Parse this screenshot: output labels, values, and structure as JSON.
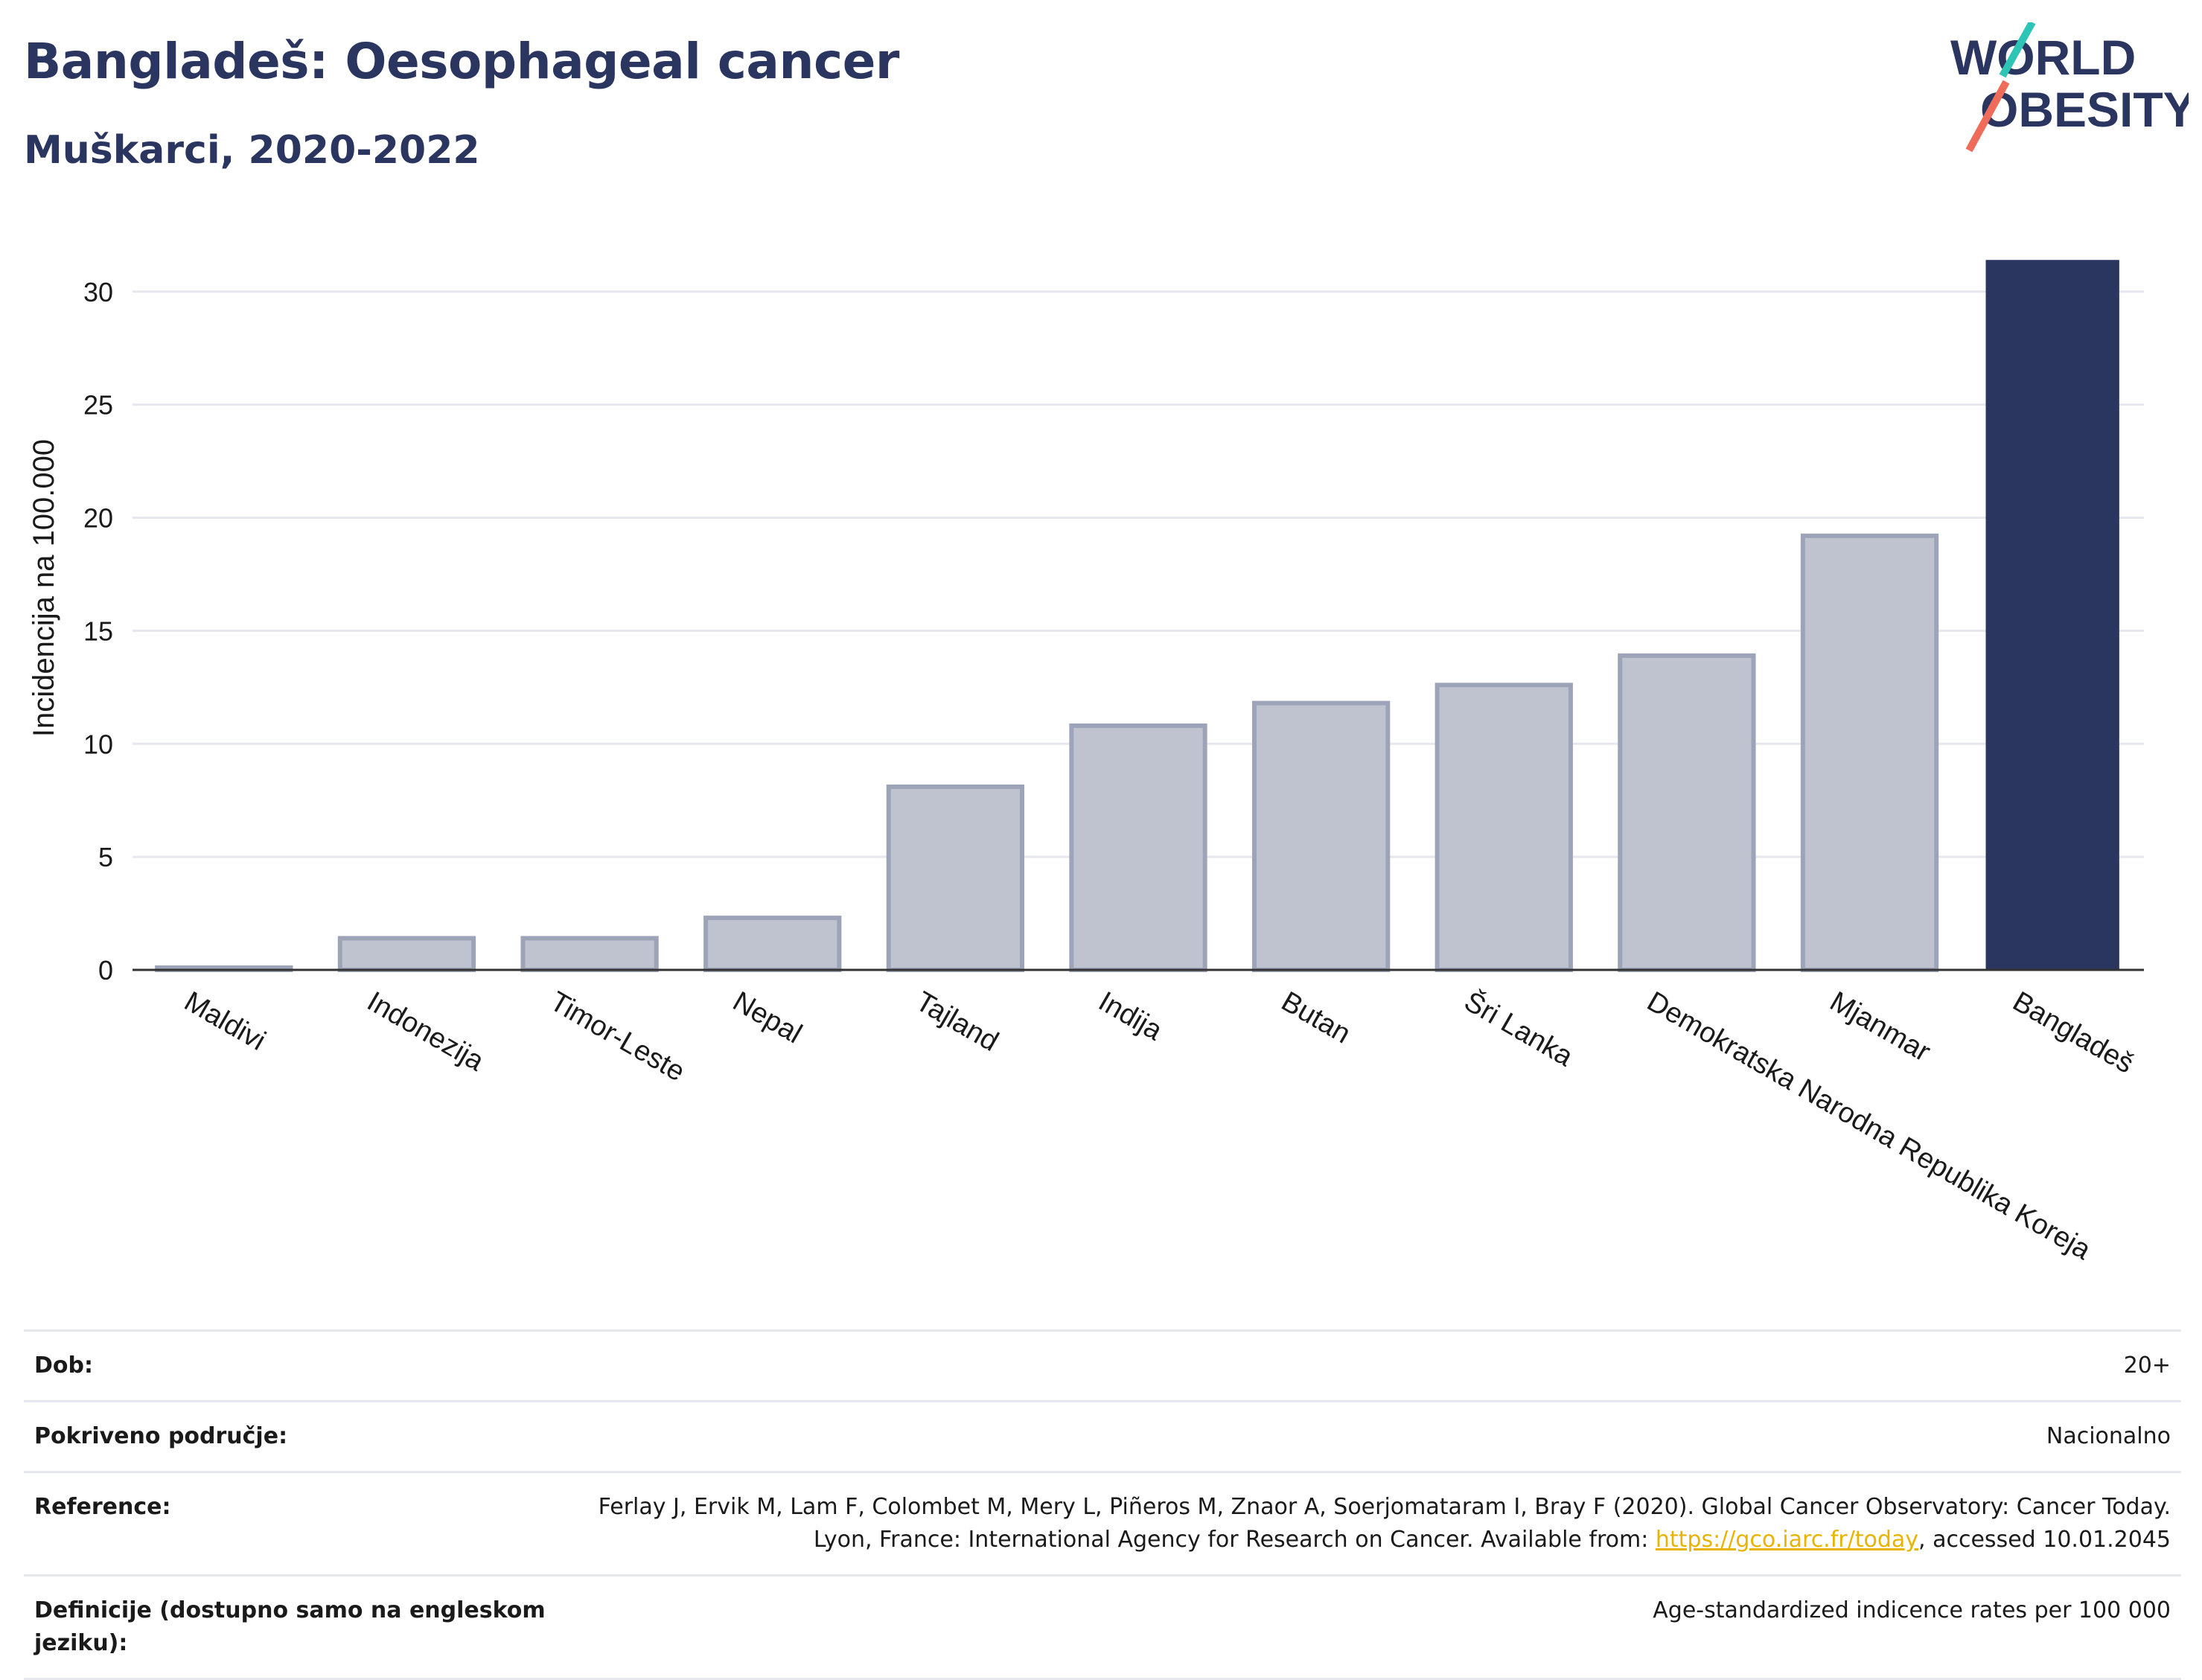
{
  "header": {
    "title": "Bangladeš: Oesophageal cancer",
    "subtitle": "Muškarci, 2020-2022",
    "logo_line1": "WORLD",
    "logo_line2": "OBESITY"
  },
  "chart_data": {
    "type": "bar",
    "ylabel": "Incidencija na 100.000",
    "ylim": [
      0,
      32
    ],
    "yticks": [
      0,
      5,
      10,
      15,
      20,
      25,
      30
    ],
    "grid": true,
    "categories": [
      "Maldivi",
      "Indonezija",
      "Timor-Leste",
      "Nepal",
      "Tajland",
      "Indija",
      "Butan",
      "Šri Lanka",
      "Demokratska Narodna Republika Koreja",
      "Mjanmar",
      "Bangladeš"
    ],
    "values": [
      0.1,
      1.4,
      1.4,
      2.3,
      8.1,
      10.8,
      11.8,
      12.6,
      13.9,
      19.2,
      31.4
    ],
    "highlight": "Bangladeš",
    "colors": {
      "highlight": "#2a3560",
      "other_fill": "#bfc3d0",
      "other_stroke": "#9ea4b8"
    }
  },
  "meta": {
    "age_label": "Dob:",
    "age_value": "20+",
    "coverage_label": "Pokriveno područje:",
    "coverage_value": "Nacionalno",
    "reference_label": "Reference:",
    "reference_text_1": "Ferlay J, Ervik M, Lam F, Colombet M, Mery L, Piñeros M, Znaor A, Soerjomataram I, Bray F (2020). Global Cancer Observatory: Cancer Today. Lyon, France: International Agency for Research on Cancer. Available from: ",
    "reference_link": "https://gco.iarc.fr/today",
    "reference_text_2": ", accessed 10.01.2045",
    "definition_label": "Definicije (dostupno samo na engleskom jeziku):",
    "definition_value": "Age-standardized indicence rates per 100 000"
  }
}
